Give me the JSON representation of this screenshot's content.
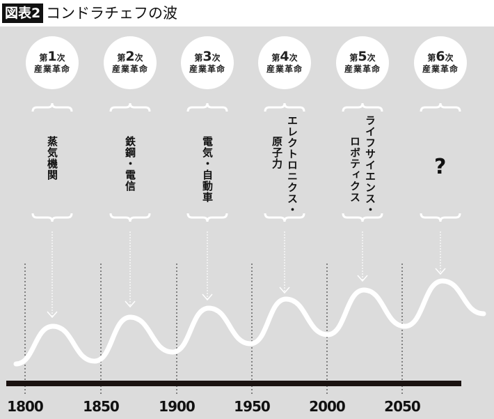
{
  "header": {
    "badge": "図表2",
    "title": "コンドラチェフの波"
  },
  "waves": [
    {
      "ordinal_prefix": "第",
      "number": "1",
      "ordinal_suffix": "次",
      "label": "産業革命",
      "tech": [
        "蒸気機関"
      ]
    },
    {
      "ordinal_prefix": "第",
      "number": "2",
      "ordinal_suffix": "次",
      "label": "産業革命",
      "tech": [
        "鉄鋼・電信"
      ]
    },
    {
      "ordinal_prefix": "第",
      "number": "3",
      "ordinal_suffix": "次",
      "label": "産業革命",
      "tech": [
        "電気・自動車"
      ]
    },
    {
      "ordinal_prefix": "第",
      "number": "4",
      "ordinal_suffix": "次",
      "label": "産業革命",
      "tech": [
        "エレクトロニクス・",
        "原子力"
      ]
    },
    {
      "ordinal_prefix": "第",
      "number": "5",
      "ordinal_suffix": "次",
      "label": "産業革命",
      "tech": [
        "ライフサイエンス・",
        "ロボティクス"
      ]
    },
    {
      "ordinal_prefix": "第",
      "number": "6",
      "ordinal_suffix": "次",
      "label": "産業革命",
      "tech": [
        "?"
      ]
    }
  ],
  "axis": {
    "years": [
      "1800",
      "1850",
      "1900",
      "1950",
      "2000",
      "2050"
    ]
  },
  "colors": {
    "panel": "#dcdcdc",
    "wave": "#ffffff",
    "axis": "#1a1210"
  }
}
